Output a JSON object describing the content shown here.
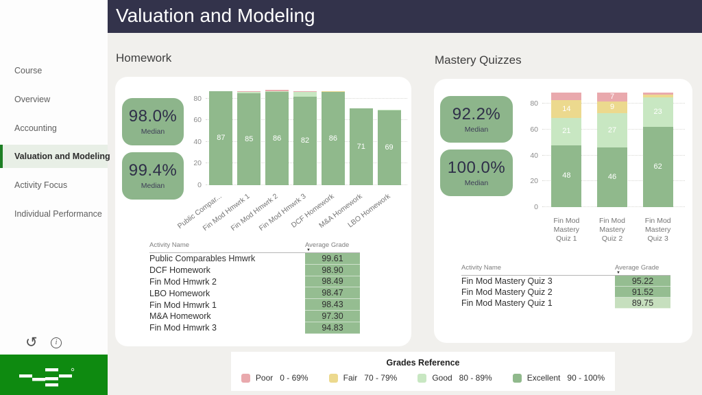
{
  "header": {
    "title": "Valuation and Modeling"
  },
  "sidebar": {
    "items": [
      {
        "label": "Course",
        "selected": false
      },
      {
        "label": "Overview",
        "selected": false
      },
      {
        "label": "Accounting",
        "selected": false
      },
      {
        "label": "Valuation and Modeling",
        "selected": true
      },
      {
        "label": "Activity Focus",
        "selected": false
      },
      {
        "label": "Individual Performance",
        "selected": false
      }
    ]
  },
  "panels": {
    "homework": {
      "title": "Homework",
      "kpis": [
        {
          "value": "98.0%",
          "label": "Median"
        },
        {
          "value": "99.4%",
          "label": "Median"
        }
      ],
      "table": {
        "columns": [
          "Activity Name",
          "Average Grade"
        ],
        "rows": [
          {
            "name": "Public Comparables Hmwrk",
            "grade": "99.61",
            "band": "excellent"
          },
          {
            "name": "DCF Homework",
            "grade": "98.90",
            "band": "excellent"
          },
          {
            "name": "Fin Mod Hmwrk 2",
            "grade": "98.49",
            "band": "excellent"
          },
          {
            "name": "LBO Homework",
            "grade": "98.47",
            "band": "excellent"
          },
          {
            "name": "Fin Mod Hmwrk 1",
            "grade": "98.43",
            "band": "excellent"
          },
          {
            "name": "M&A Homework",
            "grade": "97.30",
            "band": "excellent"
          },
          {
            "name": "Fin Mod Hmwrk 3",
            "grade": "94.83",
            "band": "excellent"
          }
        ]
      }
    },
    "quizzes": {
      "title": "Mastery Quizzes",
      "kpis": [
        {
          "value": "92.2%",
          "label": "Median"
        },
        {
          "value": "100.0%",
          "label": "Median"
        }
      ],
      "table": {
        "columns": [
          "Activity Name",
          "Average Grade"
        ],
        "rows": [
          {
            "name": "Fin Mod Mastery Quiz 3",
            "grade": "95.22",
            "band": "excellent"
          },
          {
            "name": "Fin Mod Mastery Quiz 2",
            "grade": "91.52",
            "band": "excellent"
          },
          {
            "name": "Fin Mod Mastery Quiz 1",
            "grade": "89.75",
            "band": "good"
          }
        ]
      }
    }
  },
  "legend": {
    "title": "Grades Reference",
    "items": [
      {
        "label": "Poor",
        "range": "0 - 69%",
        "band": "poor"
      },
      {
        "label": "Fair",
        "range": "70 - 79%",
        "band": "fair"
      },
      {
        "label": "Good",
        "range": "80 - 89%",
        "band": "good"
      },
      {
        "label": "Excellent",
        "range": "90 - 100%",
        "band": "excellent"
      }
    ]
  },
  "colors": {
    "poor": "#e9a9ad",
    "fair": "#ecd98e",
    "good": "#c8e7c2",
    "excellent": "#90b98c",
    "excellent_cell": "#95bd91",
    "good_cell": "#c6dfbe",
    "kpi_green": "#8db58b",
    "header_bg": "#33334b",
    "logo_green": "#0e8a10",
    "selected_nav_accent": "#1d7e24"
  },
  "chart_data": [
    {
      "type": "bar",
      "stacked": true,
      "title": "Homework",
      "categories": [
        "Public Compar...",
        "Fin Mod Hmwrk 1",
        "Fin Mod Hmwrk 2",
        "Fin Mod Hmwrk 3",
        "DCF Homework",
        "M&A Homework",
        "LBO Homework"
      ],
      "series": [
        {
          "name": "Excellent",
          "values": [
            87,
            85,
            86,
            82,
            86,
            71,
            69
          ]
        },
        {
          "name": "Good",
          "values": [
            0,
            1,
            1,
            4,
            0,
            0,
            1
          ]
        },
        {
          "name": "Fair",
          "values": [
            0,
            0,
            0,
            0,
            1,
            0,
            0
          ]
        },
        {
          "name": "Poor",
          "values": [
            0,
            1,
            1,
            1,
            0,
            0,
            0
          ]
        }
      ],
      "yticks": [
        0,
        20,
        40,
        60,
        80
      ],
      "ylim": [
        0,
        92
      ],
      "label_min": 5,
      "grid": true,
      "legend_position": "shared-bottom"
    },
    {
      "type": "bar",
      "stacked": true,
      "title": "Mastery Quizzes",
      "categories": [
        "Fin Mod Mastery Quiz 1",
        "Fin Mod Mastery Quiz 2",
        "Fin Mod Mastery Quiz 3"
      ],
      "series": [
        {
          "name": "Excellent",
          "values": [
            48,
            46,
            62
          ]
        },
        {
          "name": "Good",
          "values": [
            21,
            27,
            23
          ]
        },
        {
          "name": "Fair",
          "values": [
            14,
            9,
            2
          ]
        },
        {
          "name": "Poor",
          "values": [
            6,
            7,
            2
          ]
        }
      ],
      "yticks": [
        0,
        20,
        40,
        60,
        80
      ],
      "ylim": [
        0,
        93
      ],
      "label_min": 7,
      "grid": true,
      "legend_position": "shared-bottom"
    }
  ]
}
